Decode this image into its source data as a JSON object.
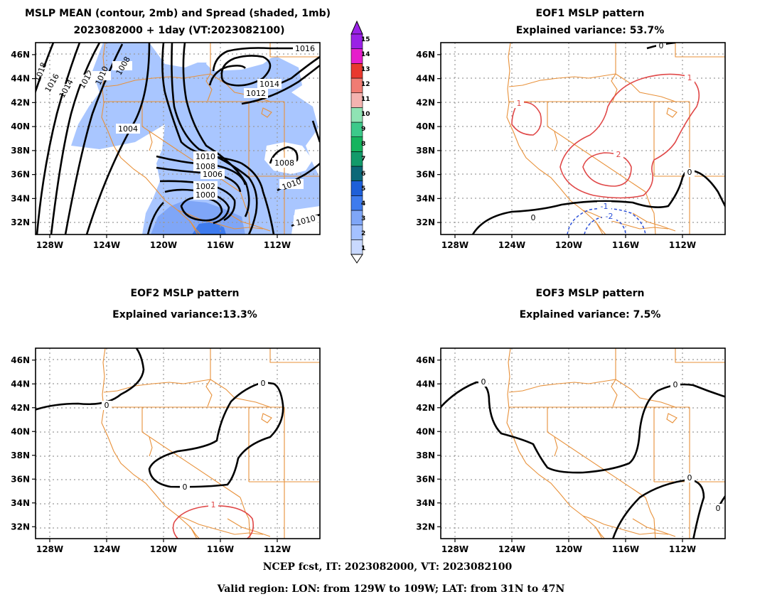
{
  "figure": {
    "footer": [
      "NCEP fcst, IT: 2023082000, VT: 2023082100",
      "Valid region: LON: from 129W to 109W; LAT: from 31N to 47N"
    ]
  },
  "axes": {
    "lon_ticks": [
      -128,
      -124,
      -120,
      -116,
      -112
    ],
    "lon_labels": [
      "128W",
      "124W",
      "120W",
      "116W",
      "112W"
    ],
    "lat_ticks": [
      32,
      34,
      36,
      38,
      40,
      42,
      44,
      46
    ],
    "lat_labels": [
      "32N",
      "34N",
      "36N",
      "38N",
      "40N",
      "42N",
      "44N",
      "46N"
    ],
    "lon_range": [
      -129,
      -109
    ],
    "lat_range": [
      31,
      47
    ]
  },
  "colorbar": {
    "labels": [
      "1",
      "2",
      "3",
      "4",
      "5",
      "6",
      "7",
      "8",
      "9",
      "10",
      "11",
      "12",
      "13",
      "14",
      "15"
    ],
    "colors": [
      "#c9d9ff",
      "#a4c1ff",
      "#7fa6f7",
      "#3e7bee",
      "#1e5fd8",
      "#0c6878",
      "#129a6a",
      "#15b45e",
      "#3cc98a",
      "#8fe3b4",
      "#f4b3b0",
      "#f07c73",
      "#e8392e",
      "#e61ecb",
      "#9a22e6"
    ]
  },
  "panels": [
    {
      "id": "mslp",
      "title_lines": [
        "MSLP MEAN (contour, 2mb) and Spread (shaded, 1mb)",
        "2023082000 + 1day (VT:2023082100)"
      ],
      "contour_labels": [
        "1018",
        "1016",
        "1014",
        "1012",
        "1010",
        "1008",
        "1004",
        "1016",
        "1014",
        "1012",
        "1010",
        "1008",
        "1006",
        "1002",
        "1000",
        "1008",
        "1010",
        "1010"
      ]
    },
    {
      "id": "eof1",
      "title_lines": [
        "EOF1 MSLP pattern",
        "Explained variance: 53.7%"
      ],
      "contour_labels": [
        "0",
        "1",
        "1",
        "2",
        "0",
        "0",
        "-1",
        "-2"
      ]
    },
    {
      "id": "eof2",
      "title_lines": [
        "EOF2 MSLP pattern",
        "Explained variance:13.3%"
      ],
      "contour_labels": [
        "0",
        "0",
        "0",
        "1"
      ]
    },
    {
      "id": "eof3",
      "title_lines": [
        "EOF3 MSLP pattern",
        "Explained variance: 7.5%"
      ],
      "contour_labels": [
        "0",
        "0",
        "0",
        "0"
      ]
    }
  ]
}
